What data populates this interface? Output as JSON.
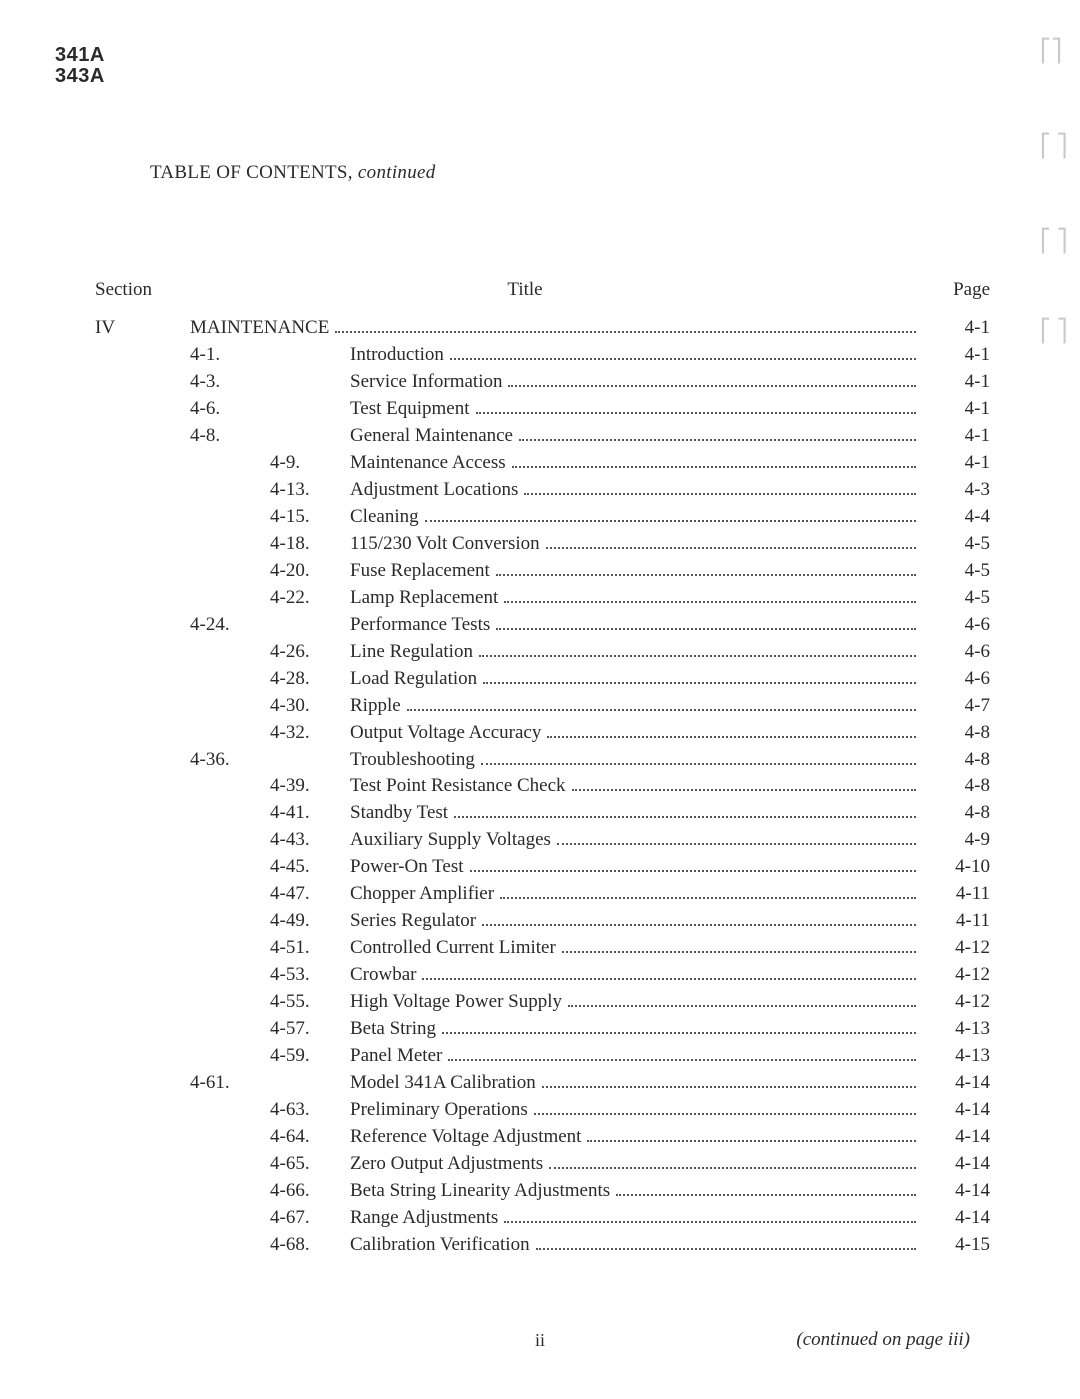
{
  "model": {
    "line1": "341A",
    "line2": "343A"
  },
  "toc_heading": {
    "prefix": "TABLE OF CONTENTS, ",
    "suffix": "continued"
  },
  "headers": {
    "section": "Section",
    "title": "Title",
    "page": "Page"
  },
  "continued_note": "(continued on page iii)",
  "page_number": "ii",
  "rows": [
    {
      "section": "IV",
      "num1": "",
      "num2": "",
      "title": "MAINTENANCE",
      "page": "4-1"
    },
    {
      "section": "",
      "num1": "4-1.",
      "num2": "",
      "title": "Introduction",
      "page": "4-1"
    },
    {
      "section": "",
      "num1": "4-3.",
      "num2": "",
      "title": "Service Information",
      "page": "4-1"
    },
    {
      "section": "",
      "num1": "4-6.",
      "num2": "",
      "title": "Test Equipment",
      "page": "4-1"
    },
    {
      "section": "",
      "num1": "4-8.",
      "num2": "",
      "title": "General Maintenance",
      "page": "4-1"
    },
    {
      "section": "",
      "num1": "",
      "num2": "4-9.",
      "title": "Maintenance Access",
      "page": "4-1"
    },
    {
      "section": "",
      "num1": "",
      "num2": "4-13.",
      "title": "Adjustment Locations",
      "page": "4-3"
    },
    {
      "section": "",
      "num1": "",
      "num2": "4-15.",
      "title": "Cleaning",
      "page": "4-4"
    },
    {
      "section": "",
      "num1": "",
      "num2": "4-18.",
      "title": "115/230 Volt Conversion",
      "page": "4-5"
    },
    {
      "section": "",
      "num1": "",
      "num2": "4-20.",
      "title": "Fuse Replacement",
      "page": "4-5"
    },
    {
      "section": "",
      "num1": "",
      "num2": "4-22.",
      "title": "Lamp Replacement",
      "page": "4-5"
    },
    {
      "section": "",
      "num1": "4-24.",
      "num2": "",
      "title": "Performance Tests",
      "page": "4-6"
    },
    {
      "section": "",
      "num1": "",
      "num2": "4-26.",
      "title": "Line Regulation",
      "page": "4-6"
    },
    {
      "section": "",
      "num1": "",
      "num2": "4-28.",
      "title": "Load Regulation",
      "page": "4-6"
    },
    {
      "section": "",
      "num1": "",
      "num2": "4-30.",
      "title": "Ripple",
      "page": "4-7"
    },
    {
      "section": "",
      "num1": "",
      "num2": "4-32.",
      "title": "Output Voltage Accuracy",
      "page": "4-8"
    },
    {
      "section": "",
      "num1": "4-36.",
      "num2": "",
      "title": "Troubleshooting",
      "page": "4-8"
    },
    {
      "section": "",
      "num1": "",
      "num2": "4-39.",
      "title": "Test Point Resistance Check",
      "page": "4-8"
    },
    {
      "section": "",
      "num1": "",
      "num2": "4-41.",
      "title": "Standby Test",
      "page": "4-8"
    },
    {
      "section": "",
      "num1": "",
      "num2": "4-43.",
      "title": "Auxiliary Supply Voltages",
      "page": "4-9"
    },
    {
      "section": "",
      "num1": "",
      "num2": "4-45.",
      "title": "Power-On Test",
      "page": "4-10"
    },
    {
      "section": "",
      "num1": "",
      "num2": "4-47.",
      "title": "Chopper Amplifier",
      "page": "4-11"
    },
    {
      "section": "",
      "num1": "",
      "num2": "4-49.",
      "title": "Series Regulator",
      "page": "4-11"
    },
    {
      "section": "",
      "num1": "",
      "num2": "4-51.",
      "title": "Controlled Current Limiter",
      "page": "4-12"
    },
    {
      "section": "",
      "num1": "",
      "num2": "4-53.",
      "title": "Crowbar",
      "page": "4-12"
    },
    {
      "section": "",
      "num1": "",
      "num2": "4-55.",
      "title": "High Voltage Power Supply",
      "page": "4-12"
    },
    {
      "section": "",
      "num1": "",
      "num2": "4-57.",
      "title": "Beta String",
      "page": "4-13"
    },
    {
      "section": "",
      "num1": "",
      "num2": "4-59.",
      "title": "Panel Meter",
      "page": "4-13"
    },
    {
      "section": "",
      "num1": "4-61.",
      "num2": "",
      "title": "Model 341A Calibration",
      "page": "4-14"
    },
    {
      "section": "",
      "num1": "",
      "num2": "4-63.",
      "title": "Preliminary Operations",
      "page": "4-14"
    },
    {
      "section": "",
      "num1": "",
      "num2": "4-64.",
      "title": "Reference Voltage Adjustment",
      "page": "4-14"
    },
    {
      "section": "",
      "num1": "",
      "num2": "4-65.",
      "title": "Zero Output Adjustments",
      "page": "4-14"
    },
    {
      "section": "",
      "num1": "",
      "num2": "4-66.",
      "title": "Beta String Linearity Adjustments",
      "page": "4-14"
    },
    {
      "section": "",
      "num1": "",
      "num2": "4-67.",
      "title": "Range Adjustments",
      "page": "4-14"
    },
    {
      "section": "",
      "num1": "",
      "num2": "4-68.",
      "title": "Calibration Verification",
      "page": "4-15"
    }
  ]
}
